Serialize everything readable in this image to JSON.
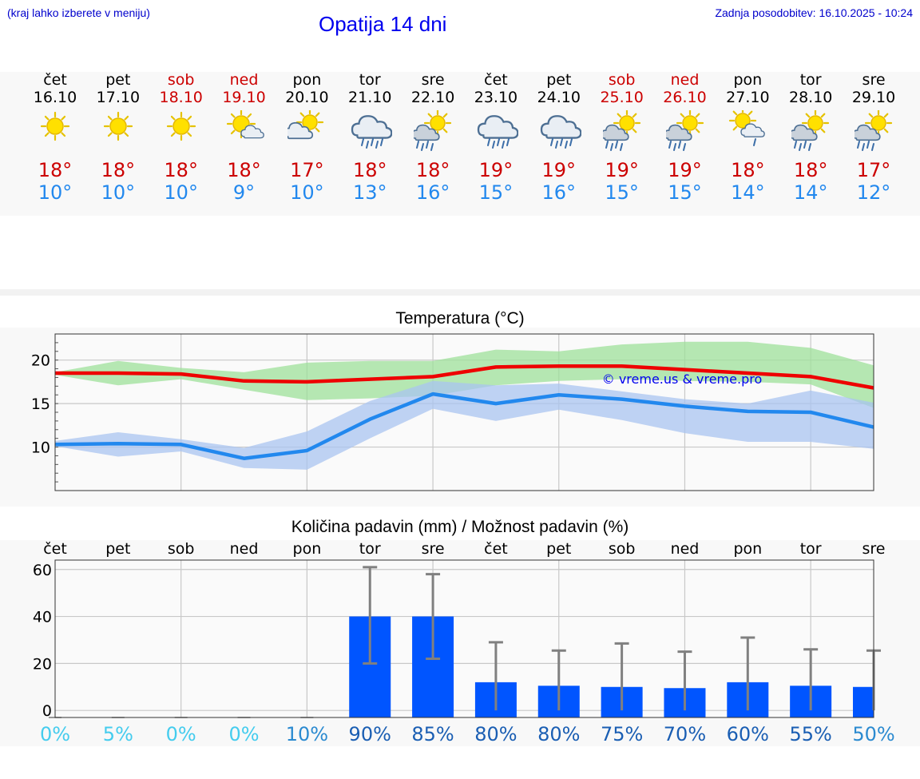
{
  "header": {
    "hint": "(kraj lahko izberete v meniju)",
    "title": "Opatija 14 dni",
    "updated": "Zadnja posodobitev: 16.10.2025 - 10:24"
  },
  "colors": {
    "max_temp": "#cc0000",
    "min_temp": "#2288ee",
    "weekend_day": "#cc0000",
    "rain_bar": "#0055ff",
    "title_blue": "#0000ee"
  },
  "days": [
    {
      "name": "čet",
      "date": "16.10",
      "weekend": false,
      "icon": "sun-icon",
      "tmax": "18°",
      "tmin": "10°"
    },
    {
      "name": "pet",
      "date": "17.10",
      "weekend": false,
      "icon": "sun-icon",
      "tmax": "18°",
      "tmin": "10°"
    },
    {
      "name": "sob",
      "date": "18.10",
      "weekend": true,
      "icon": "sun-icon",
      "tmax": "18°",
      "tmin": "10°"
    },
    {
      "name": "ned",
      "date": "19.10",
      "weekend": true,
      "icon": "sun-small-cloud-icon",
      "tmax": "18°",
      "tmin": "9°"
    },
    {
      "name": "pon",
      "date": "20.10",
      "weekend": false,
      "icon": "sun-cloud-icon",
      "tmax": "17°",
      "tmin": "10°"
    },
    {
      "name": "tor",
      "date": "21.10",
      "weekend": false,
      "icon": "rain-cloud-icon",
      "tmax": "18°",
      "tmin": "13°"
    },
    {
      "name": "sre",
      "date": "22.10",
      "weekend": false,
      "icon": "sun-rain-icon",
      "tmax": "18°",
      "tmin": "16°"
    },
    {
      "name": "čet",
      "date": "23.10",
      "weekend": false,
      "icon": "rain-cloud-icon",
      "tmax": "19°",
      "tmin": "15°"
    },
    {
      "name": "pet",
      "date": "24.10",
      "weekend": false,
      "icon": "rain-cloud-icon",
      "tmax": "19°",
      "tmin": "16°"
    },
    {
      "name": "sob",
      "date": "25.10",
      "weekend": true,
      "icon": "sun-rain-icon",
      "tmax": "19°",
      "tmin": "15°"
    },
    {
      "name": "ned",
      "date": "26.10",
      "weekend": true,
      "icon": "sun-rain-icon",
      "tmax": "19°",
      "tmin": "15°"
    },
    {
      "name": "pon",
      "date": "27.10",
      "weekend": false,
      "icon": "sun-cloud-drizzle-icon",
      "tmax": "18°",
      "tmin": "14°"
    },
    {
      "name": "tor",
      "date": "28.10",
      "weekend": false,
      "icon": "sun-rain-icon",
      "tmax": "18°",
      "tmin": "14°"
    },
    {
      "name": "sre",
      "date": "29.10",
      "weekend": false,
      "icon": "sun-rain-icon",
      "tmax": "17°",
      "tmin": "12°"
    }
  ],
  "chart_data": [
    {
      "type": "line",
      "title": "Temperatura (°C)",
      "ylim": [
        5,
        23
      ],
      "yticks": [
        10,
        15,
        20
      ],
      "grid": true,
      "watermark": "© vreme.us & vreme.pro",
      "x": [
        "16.10",
        "17.10",
        "18.10",
        "19.10",
        "20.10",
        "21.10",
        "22.10",
        "23.10",
        "24.10",
        "25.10",
        "26.10",
        "27.10",
        "28.10",
        "29.10"
      ],
      "series": [
        {
          "name": "max",
          "color": "#ee0000",
          "values": [
            18.5,
            18.5,
            18.4,
            17.6,
            17.5,
            17.8,
            18.1,
            19.2,
            19.3,
            19.3,
            18.9,
            18.5,
            18.1,
            16.8
          ]
        },
        {
          "name": "min",
          "color": "#2288ee",
          "values": [
            10.3,
            10.4,
            10.3,
            8.7,
            9.6,
            13.2,
            16.1,
            15.0,
            16.0,
            15.5,
            14.7,
            14.1,
            14.0,
            12.3
          ]
        }
      ],
      "bands": [
        {
          "name": "max-range",
          "color": "#9ee09a",
          "low": [
            18.3,
            17.1,
            17.8,
            16.6,
            15.4,
            15.6,
            15.9,
            17.1,
            17.6,
            17.8,
            17.6,
            17.5,
            17.2,
            14.5
          ],
          "high": [
            18.6,
            19.9,
            19.1,
            18.6,
            19.7,
            19.9,
            19.9,
            21.2,
            21.0,
            21.8,
            22.1,
            22.1,
            21.4,
            19.4
          ]
        },
        {
          "name": "min-range",
          "color": "#a9c4f0",
          "low": [
            10.1,
            8.9,
            9.5,
            7.6,
            7.4,
            11.0,
            14.4,
            13.0,
            14.3,
            13.1,
            11.6,
            10.6,
            10.6,
            9.8
          ],
          "high": [
            10.7,
            11.7,
            10.9,
            9.9,
            11.8,
            15.3,
            17.6,
            17.1,
            17.3,
            16.4,
            15.5,
            15.0,
            16.5,
            15.1
          ]
        }
      ]
    },
    {
      "type": "bar",
      "title": "Količina padavin (mm) / Možnost padavin (%)",
      "ylim": [
        -3,
        64
      ],
      "yticks": [
        0,
        20,
        40,
        60
      ],
      "grid": true,
      "categories": [
        "čet",
        "pet",
        "sob",
        "ned",
        "pon",
        "tor",
        "sre",
        "čet",
        "pet",
        "sob",
        "ned",
        "pon",
        "tor",
        "sre"
      ],
      "values": [
        0,
        0,
        0,
        0,
        0,
        40,
        40,
        12,
        10.5,
        10,
        9.5,
        12,
        10.5,
        10
      ],
      "error_low": [
        0,
        0,
        0,
        0,
        0,
        20,
        22,
        0,
        0,
        0,
        0,
        0,
        0,
        0
      ],
      "error_high": [
        0,
        0,
        0,
        0,
        0,
        61,
        58,
        29,
        25.5,
        28.5,
        25,
        31,
        26,
        25.5
      ],
      "chance_labels": [
        "0%",
        "5%",
        "0%",
        "0%",
        "10%",
        "90%",
        "85%",
        "80%",
        "80%",
        "75%",
        "70%",
        "60%",
        "55%",
        "50%"
      ],
      "chance_colors": [
        "#44ccee",
        "#44ccee",
        "#44ccee",
        "#44ccee",
        "#2b8ad0",
        "#1a5eb3",
        "#1a5eb3",
        "#1a5eb3",
        "#1a5eb3",
        "#1a5eb3",
        "#1a5eb3",
        "#1a5eb3",
        "#1a5eb3",
        "#2b8ad0"
      ]
    }
  ]
}
